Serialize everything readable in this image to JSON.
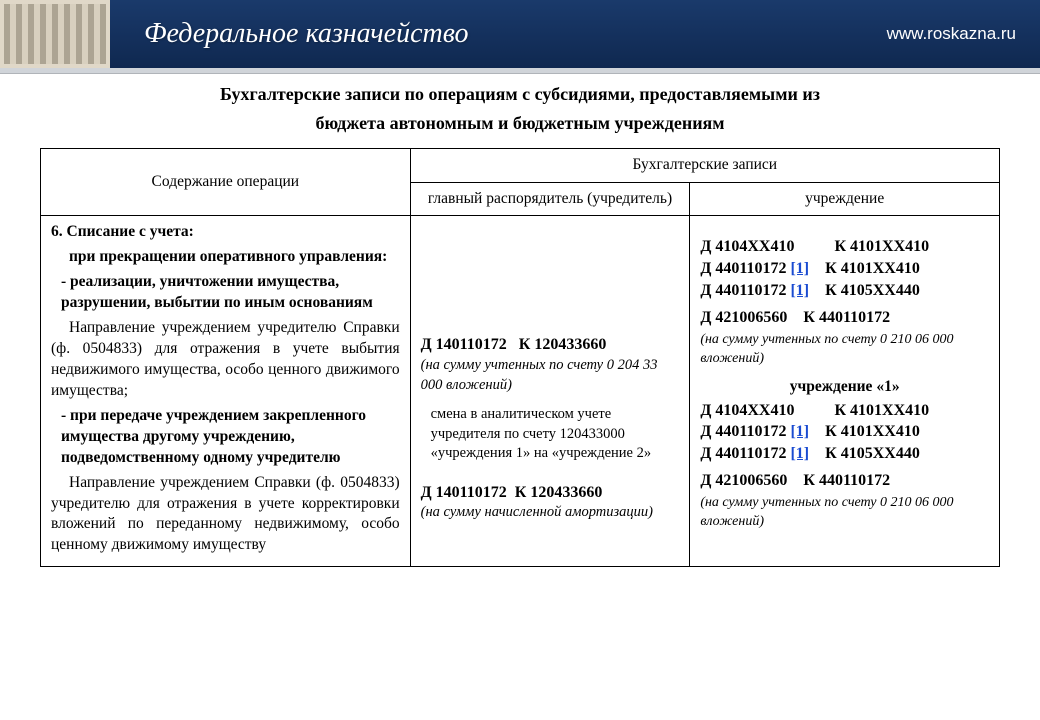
{
  "banner": {
    "org_title": "Федеральное казначейство",
    "url": "www.roskazna.ru",
    "bg_gradient_top": "#1a3a6b",
    "bg_gradient_bottom": "#0f2850",
    "text_color": "#ffffff"
  },
  "slide_title_line1": "Бухгалтерские записи по операциям с субсидиями, предоставляемыми из",
  "slide_title_line2": "бюджета автономным и бюджетным учреждениям",
  "table": {
    "header": {
      "col_operation": "Содержание операции",
      "col_entries": "Бухгалтерские записи",
      "sub_main_disposer": "главный распорядитель (учредитель)",
      "sub_institution": "учреждение"
    },
    "operation": {
      "head": "6. Списание с учета:",
      "p1": "при прекращении оперативного управления:",
      "p2": "- реализации, уничтожении имущества, разрушении, выбытии по иным основаниям",
      "p3": "Направление учреждением учредителю Справки (ф. 0504833) для отражения в учете выбытия недвижимого имущества, особо ценного движимого имущества;",
      "p4": "- при передаче учреждением закрепленного имущества другому учреждению, подведомственному одному учредителю",
      "p5": "Направление учреждением Справки (ф. 0504833) учредителю для отражения в учете корректировки вложений по переданному недвижимому, особо ценному движимому имуществу"
    },
    "disposer": {
      "entry1_d": "Д 140110172",
      "entry1_k": "К 120433660",
      "note1": "(на сумму учтенных по счету 0 204 33 000 вложений)",
      "para": "смена в аналитическом учете учредителя по счету 120433000 «учреждения 1» на «учреждение 2»",
      "entry2_d": "Д 140110172",
      "entry2_k": "К 120433660",
      "note2": "(на сумму начисленной амортизации)"
    },
    "institution": {
      "rows_a": [
        {
          "d": "Д 4104ХХ410",
          "fn": "",
          "k": "К 4101ХХ410"
        },
        {
          "d": "Д 440110172",
          "fn": "[1]",
          "k": "К 4101ХХ410"
        },
        {
          "d": "Д 440110172",
          "fn": "[1]",
          "k": "К 4105ХХ440"
        }
      ],
      "entry_a4_d": "Д 421006560",
      "entry_a4_k": "К 440110172",
      "note_a": "(на сумму учтенных по счету 0 210 06 000 вложений)",
      "subhead": "учреждение «1»",
      "rows_b": [
        {
          "d": "Д 4104ХХ410",
          "fn": "",
          "k": "К 4101ХХ410"
        },
        {
          "d": "Д 440110172",
          "fn": "[1]",
          "k": "К 4101ХХ410"
        },
        {
          "d": "Д 440110172",
          "fn": "[1]",
          "k": "К 4105ХХ440"
        }
      ],
      "entry_b4_d": "Д 421006560",
      "entry_b4_k": "К 440110172",
      "note_b": "(на сумму учтенных по счету 0 210 06 000 вложений)"
    }
  },
  "colors": {
    "border": "#000000",
    "link": "#1a4bd1",
    "text": "#000000",
    "background": "#ffffff"
  },
  "typography": {
    "title_fontsize_pt": 14,
    "body_fontsize_pt": 12,
    "font_family": "Times New Roman"
  }
}
